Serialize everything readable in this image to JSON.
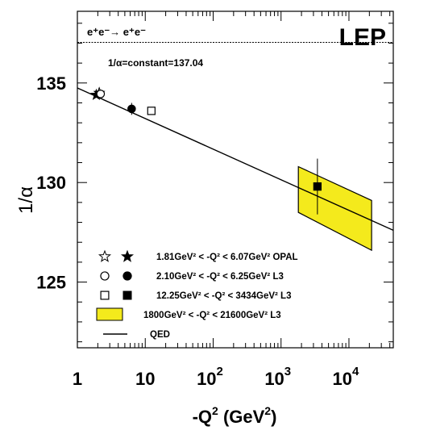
{
  "chart_data": {
    "type": "scatter",
    "x_scale": "log",
    "xlim": [
      1,
      45000
    ],
    "ylim": [
      121.7,
      138.6
    ],
    "grid": false,
    "process_text": "e⁺e⁻→ e⁺e⁻",
    "collaboration_label": "LEP",
    "constant_line": {
      "y": 137.04,
      "label": "1/α=constant=137.04"
    },
    "y_tick_values": [
      125,
      130,
      135
    ],
    "y_tick_labels": [
      "125",
      "130",
      "135"
    ],
    "x_tick_values": [
      1,
      10,
      100,
      1000,
      10000
    ],
    "x_tick_labels": [
      {
        "base": "1",
        "exp": ""
      },
      {
        "base": "10",
        "exp": ""
      },
      {
        "base": "10",
        "exp": "2"
      },
      {
        "base": "10",
        "exp": "3"
      },
      {
        "base": "10",
        "exp": "4"
      }
    ],
    "ylabel": "1/α",
    "xlabel": {
      "main": "-Q",
      "exp1": "2",
      "unit_open": " (GeV",
      "exp2": "2",
      "unit_close": ")"
    },
    "legend_position": "bottom-left",
    "series": [
      {
        "name": "1.81GeV² < -Q² < 6.07GeV² OPAL",
        "open_marker": "star",
        "filled_marker": "star",
        "points": [
          {
            "x": 2.1,
            "y": 134.5,
            "marker": "star-open"
          },
          {
            "x": 1.9,
            "y": 134.4,
            "marker": "star-filled"
          }
        ]
      },
      {
        "name": "2.10GeV² < -Q² < 6.25GeV² L3",
        "open_marker": "circle",
        "filled_marker": "circle",
        "points": [
          {
            "x": 2.2,
            "y": 134.45,
            "marker": "circle-open"
          },
          {
            "x": 6.3,
            "y": 133.7,
            "marker": "circle-filled",
            "yerr": 0.3
          }
        ]
      },
      {
        "name": "12.25GeV² < -Q² < 3434GeV² L3",
        "open_marker": "square",
        "filled_marker": "square",
        "points": [
          {
            "x": 12.3,
            "y": 133.6,
            "marker": "square-open"
          },
          {
            "x": 3434,
            "y": 129.8,
            "marker": "square-filled",
            "yerr": 1.4
          }
        ]
      },
      {
        "name": "1800GeV² < -Q² < 21600GeV² L3",
        "open_marker": "band",
        "band": {
          "x": [
            1800,
            21600
          ],
          "upper": [
            130.8,
            129.1
          ],
          "lower": [
            128.5,
            126.6
          ]
        }
      },
      {
        "name": "QED",
        "open_marker": "line",
        "line": {
          "x": [
            1,
            45000
          ],
          "y": [
            134.75,
            127.6
          ]
        }
      }
    ],
    "band_color": "#f4ea1c"
  }
}
